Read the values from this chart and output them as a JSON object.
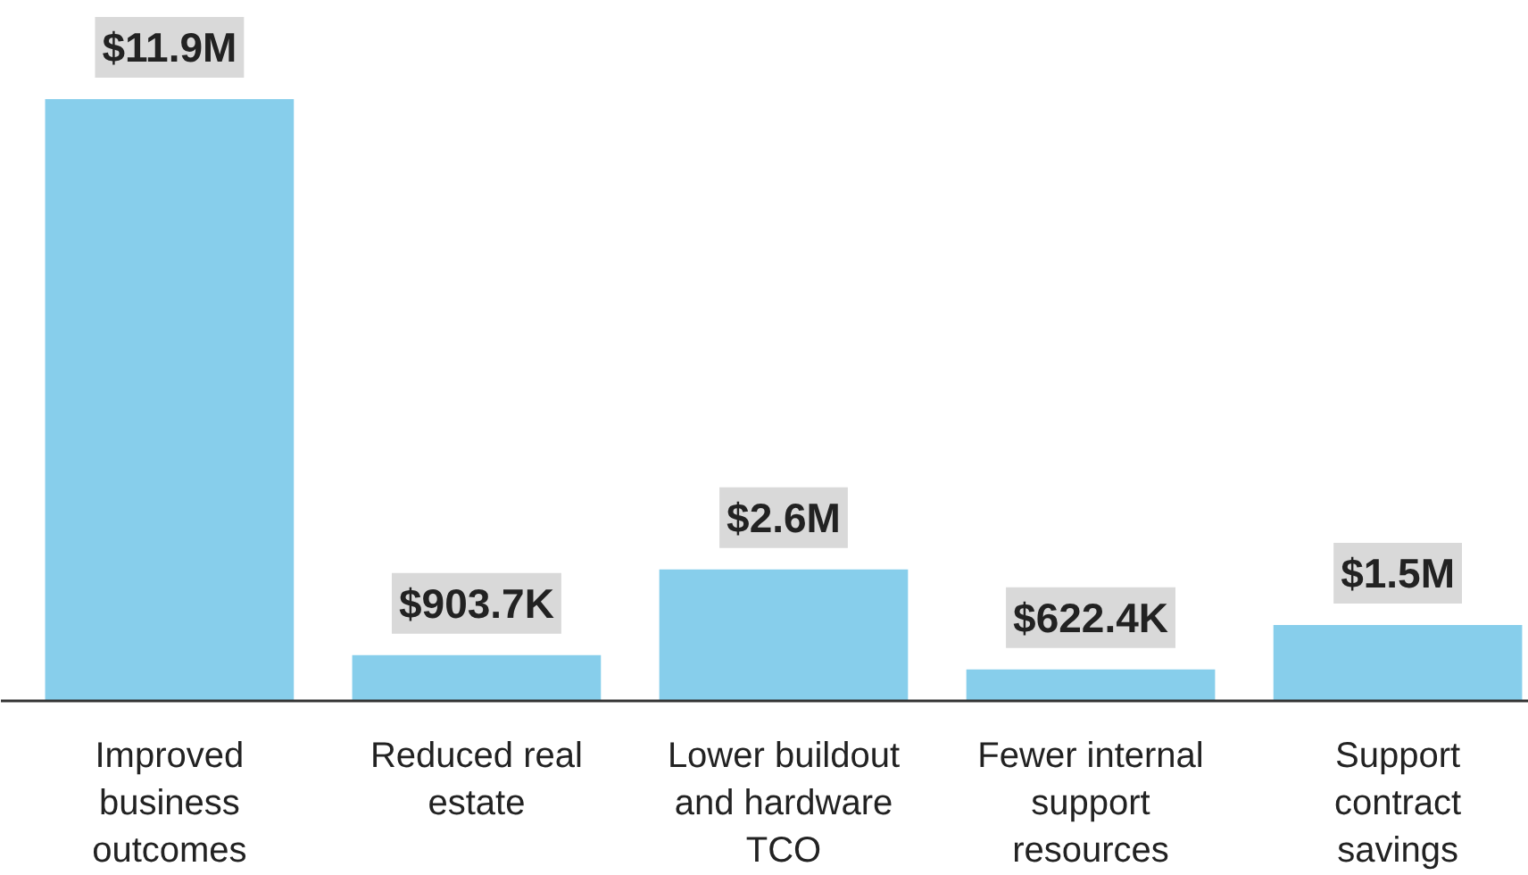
{
  "chart_data": {
    "type": "bar",
    "categories": [
      "Improved\nbusiness\noutcomes",
      "Reduced real\nestate",
      "Lower buildout\nand hardware\nTCO",
      "Fewer internal\nsupport\nresources",
      "Support\ncontract\nsavings"
    ],
    "values": [
      11900000,
      903700,
      2600000,
      622400,
      1500000
    ],
    "value_labels": [
      "$11.9M",
      "$903.7K",
      "$2.6M",
      "$622.4K",
      "$1.5M"
    ],
    "color": "#87ceeb",
    "grid": false
  }
}
